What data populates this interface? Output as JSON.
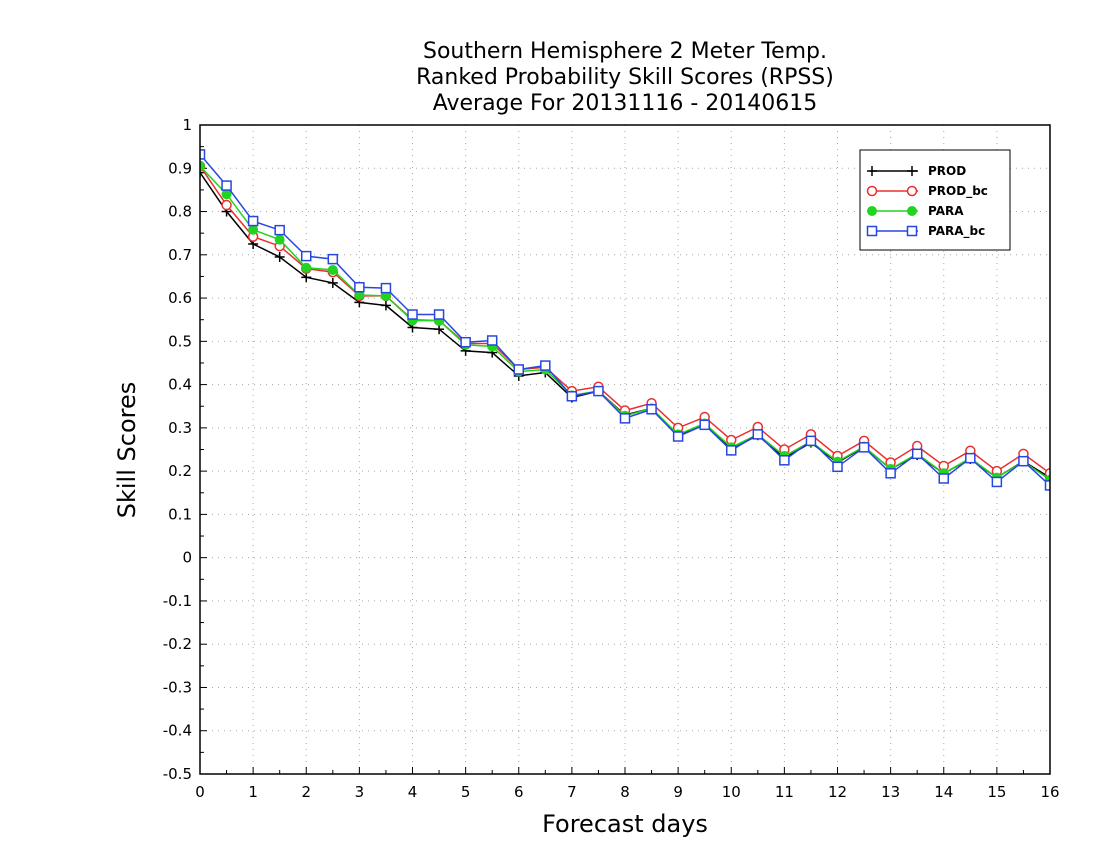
{
  "chart_data": {
    "type": "line",
    "title_lines": [
      "Southern Hemisphere 2 Meter Temp.",
      "Ranked Probability Skill Scores (RPSS)",
      "Average For 20131116 - 20140615"
    ],
    "xlabel": "Forecast days",
    "ylabel": "Skill Scores",
    "xlim": [
      0,
      16
    ],
    "ylim": [
      -0.5,
      1
    ],
    "x_ticks": [
      "0",
      "1",
      "2",
      "3",
      "4",
      "5",
      "6",
      "7",
      "8",
      "9",
      "10",
      "11",
      "12",
      "13",
      "14",
      "15",
      "16"
    ],
    "y_ticks": [
      "1",
      "0.9",
      "0.8",
      "0.7",
      "0.6",
      "0.5",
      "0.4",
      "0.3",
      "0.2",
      "0.1",
      "0",
      "-0.1",
      "-0.2",
      "-0.3",
      "-0.4",
      "-0.5"
    ],
    "grid": true,
    "legend_position": "top-right",
    "x": [
      0,
      0.5,
      1,
      1.5,
      2,
      2.5,
      3,
      3.5,
      4,
      4.5,
      5,
      5.5,
      6,
      6.5,
      7,
      7.5,
      8,
      8.5,
      9,
      9.5,
      10,
      10.5,
      11,
      11.5,
      12,
      12.5,
      13,
      13.5,
      14,
      14.5,
      15,
      15.5,
      16
    ],
    "series": [
      {
        "name": "PROD",
        "color": "#000000",
        "marker": "plus",
        "values": [
          0.89,
          0.8,
          0.725,
          0.695,
          0.648,
          0.635,
          0.59,
          0.583,
          0.532,
          0.528,
          0.478,
          0.474,
          0.42,
          0.428,
          0.37,
          0.385,
          0.33,
          0.345,
          0.283,
          0.31,
          0.25,
          0.283,
          0.23,
          0.266,
          0.22,
          0.256,
          0.205,
          0.237,
          0.195,
          0.228,
          0.185,
          0.223,
          0.185
        ]
      },
      {
        "name": "PROD_bc",
        "color": "#e83030",
        "marker": "open-circle",
        "values": [
          0.905,
          0.815,
          0.742,
          0.72,
          0.668,
          0.66,
          0.605,
          0.605,
          0.55,
          0.548,
          0.495,
          0.495,
          0.435,
          0.44,
          0.385,
          0.395,
          0.34,
          0.357,
          0.3,
          0.325,
          0.272,
          0.302,
          0.25,
          0.285,
          0.235,
          0.27,
          0.22,
          0.258,
          0.212,
          0.247,
          0.2,
          0.24,
          0.195
        ]
      },
      {
        "name": "PARA",
        "color": "#22d422",
        "marker": "filled-circle",
        "values": [
          0.905,
          0.84,
          0.758,
          0.735,
          0.67,
          0.665,
          0.607,
          0.605,
          0.548,
          0.548,
          0.492,
          0.488,
          0.43,
          0.435,
          0.375,
          0.385,
          0.328,
          0.345,
          0.285,
          0.31,
          0.255,
          0.285,
          0.235,
          0.268,
          0.222,
          0.257,
          0.205,
          0.24,
          0.195,
          0.23,
          0.185,
          0.222,
          0.18
        ]
      },
      {
        "name": "PARA_bc",
        "color": "#2846e0",
        "marker": "open-square",
        "values": [
          0.932,
          0.86,
          0.778,
          0.757,
          0.697,
          0.69,
          0.625,
          0.623,
          0.562,
          0.562,
          0.498,
          0.502,
          0.435,
          0.444,
          0.373,
          0.385,
          0.322,
          0.343,
          0.28,
          0.307,
          0.248,
          0.285,
          0.225,
          0.27,
          0.21,
          0.255,
          0.195,
          0.24,
          0.183,
          0.23,
          0.175,
          0.223,
          0.167
        ]
      }
    ]
  }
}
